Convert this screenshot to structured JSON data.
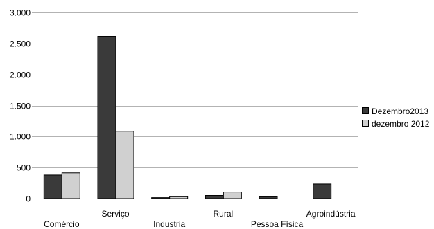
{
  "chart_data": {
    "type": "bar",
    "categories": [
      "Comércio",
      "Serviço",
      "Industria",
      "Rural",
      "Pessoa Física",
      "Agroindústria"
    ],
    "series": [
      {
        "name": "Dezembro2013",
        "color": "#3a3a3a",
        "values": [
          380,
          2615,
          15,
          50,
          30,
          235
        ]
      },
      {
        "name": "dezembro 2012",
        "color": "#d0d0d0",
        "values": [
          415,
          1085,
          30,
          105,
          0,
          0
        ]
      }
    ],
    "ylim": [
      0,
      3000
    ],
    "yticks": [
      0,
      500,
      1000,
      1500,
      2000,
      2500,
      3000
    ],
    "ytick_labels": [
      "0",
      "500",
      "1.000",
      "1.500",
      "2.000",
      "2.500",
      "3.000"
    ],
    "grid": true,
    "legend_position": "right",
    "title": "",
    "xlabel": "",
    "ylabel": ""
  }
}
